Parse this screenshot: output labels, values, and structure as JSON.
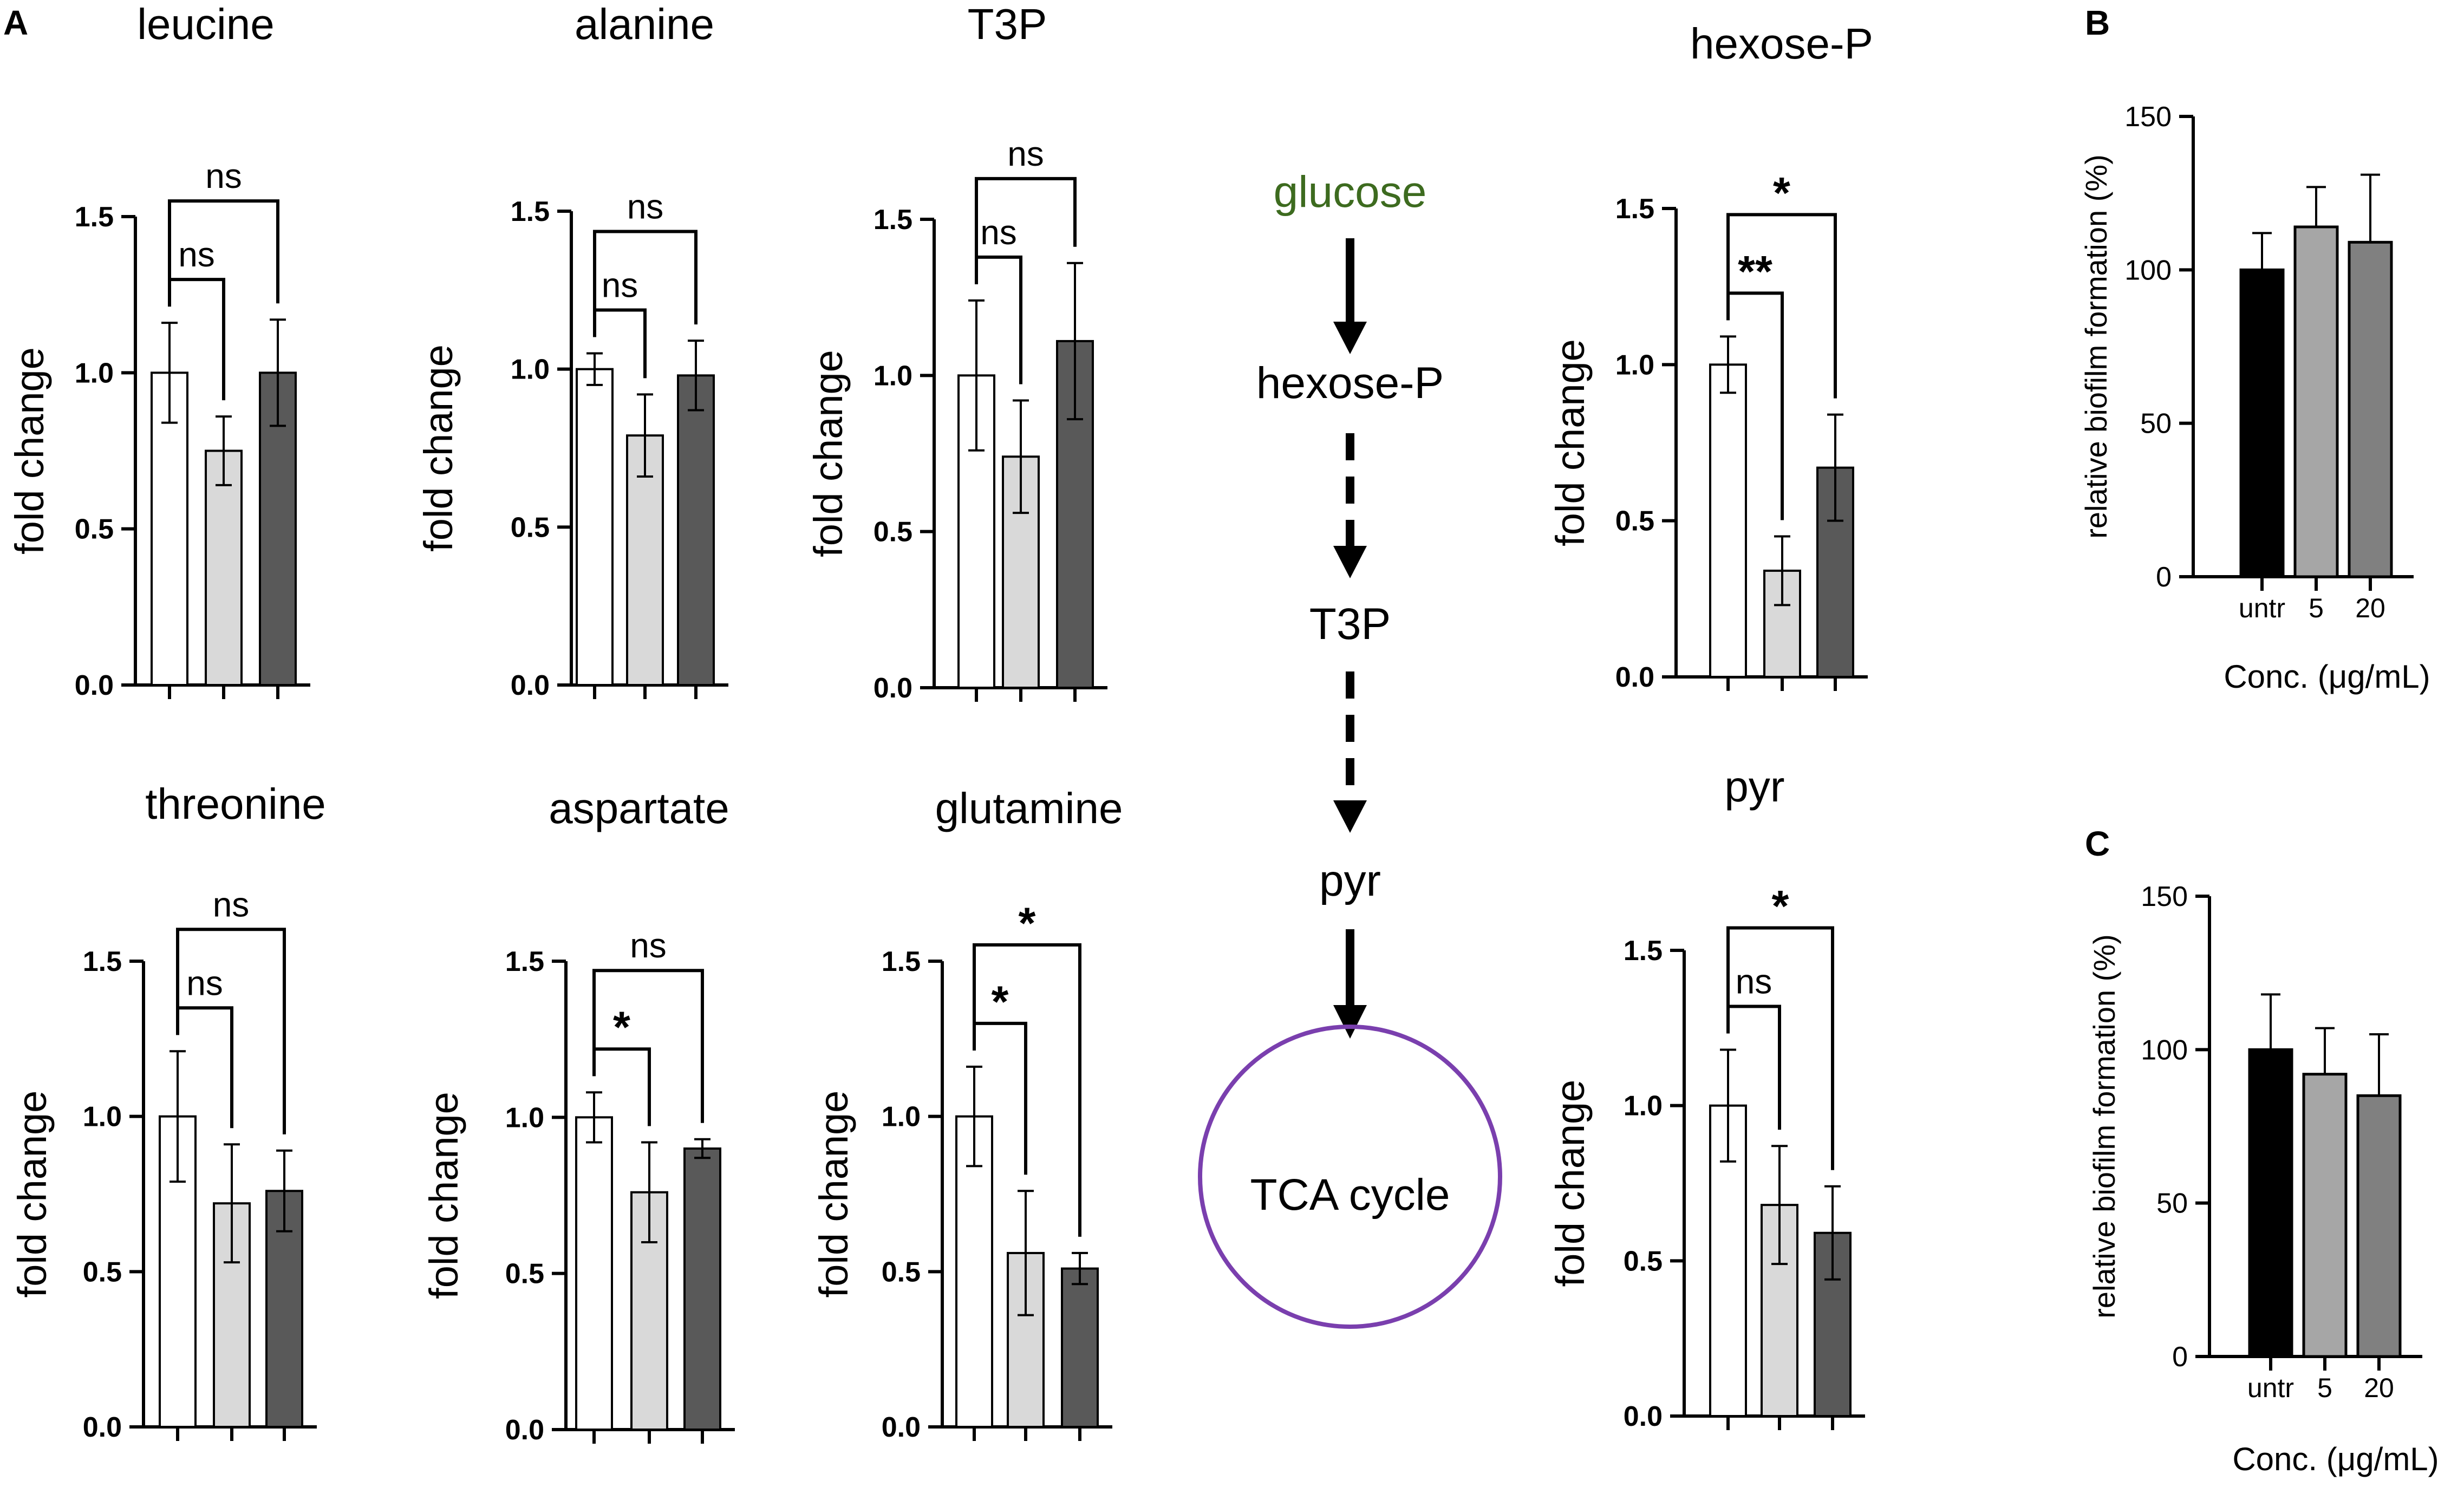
{
  "panel_labels": {
    "A": "A",
    "B": "B",
    "C": "C"
  },
  "colors": {
    "untreated": "#ffffff",
    "low": "#d9d9d9",
    "high": "#595959",
    "glucose": "#3d6b1f",
    "tca_circle": "#7a3fae"
  },
  "pathway": {
    "glucose": "glucose",
    "hexose": "hexose-P",
    "t3p": "T3P",
    "pyr": "pyr",
    "tca": "TCA cycle"
  },
  "chart_data": [
    {
      "type": "bar",
      "title": "leucine",
      "ylabel": "fold change",
      "ylim": [
        0,
        1.5
      ],
      "yticks": [
        "0.0",
        "0.5",
        "1.0",
        "1.5"
      ],
      "values": [
        1.0,
        0.75,
        1.0
      ],
      "errors": [
        0.16,
        0.11,
        0.17
      ],
      "comparisons": [
        {
          "from": 0,
          "to": 1,
          "label": "ns"
        },
        {
          "from": 0,
          "to": 2,
          "label": "ns"
        }
      ]
    },
    {
      "type": "bar",
      "title": "alanine",
      "ylabel": "fold change",
      "ylim": [
        0,
        1.5
      ],
      "yticks": [
        "0.0",
        "0.5",
        "1.0",
        "1.5"
      ],
      "values": [
        1.0,
        0.79,
        0.98
      ],
      "errors": [
        0.05,
        0.13,
        0.11
      ],
      "comparisons": [
        {
          "from": 0,
          "to": 1,
          "label": "ns"
        },
        {
          "from": 0,
          "to": 2,
          "label": "ns"
        }
      ]
    },
    {
      "type": "bar",
      "title": "T3P",
      "ylabel": "fold change",
      "ylim": [
        0,
        1.5
      ],
      "yticks": [
        "0.0",
        "0.5",
        "1.0",
        "1.5"
      ],
      "values": [
        1.0,
        0.74,
        1.11
      ],
      "errors": [
        0.24,
        0.18,
        0.25
      ],
      "comparisons": [
        {
          "from": 0,
          "to": 1,
          "label": "ns"
        },
        {
          "from": 0,
          "to": 2,
          "label": "ns"
        }
      ]
    },
    {
      "type": "bar",
      "title": "hexose-P",
      "ylabel": "fold change",
      "ylim": [
        0,
        1.5
      ],
      "yticks": [
        "0.0",
        "0.5",
        "1.0",
        "1.5"
      ],
      "values": [
        1.0,
        0.34,
        0.67
      ],
      "errors": [
        0.09,
        0.11,
        0.17
      ],
      "comparisons": [
        {
          "from": 0,
          "to": 1,
          "label": "**"
        },
        {
          "from": 0,
          "to": 2,
          "label": "*"
        }
      ]
    },
    {
      "type": "bar",
      "title": "threonine",
      "ylabel": "fold change",
      "ylim": [
        0,
        1.5
      ],
      "yticks": [
        "0.0",
        "0.5",
        "1.0",
        "1.5"
      ],
      "values": [
        1.0,
        0.72,
        0.76
      ],
      "errors": [
        0.21,
        0.19,
        0.13
      ],
      "comparisons": [
        {
          "from": 0,
          "to": 1,
          "label": "ns"
        },
        {
          "from": 0,
          "to": 2,
          "label": "ns"
        }
      ]
    },
    {
      "type": "bar",
      "title": "aspartate",
      "ylabel": "fold change",
      "ylim": [
        0,
        1.5
      ],
      "yticks": [
        "0.0",
        "0.5",
        "1.0",
        "1.5"
      ],
      "values": [
        1.0,
        0.76,
        0.9
      ],
      "errors": [
        0.08,
        0.16,
        0.03
      ],
      "comparisons": [
        {
          "from": 0,
          "to": 1,
          "label": "*"
        },
        {
          "from": 0,
          "to": 2,
          "label": "ns"
        }
      ]
    },
    {
      "type": "bar",
      "title": "glutamine",
      "ylabel": "fold change",
      "ylim": [
        0,
        1.5
      ],
      "yticks": [
        "0.0",
        "0.5",
        "1.0",
        "1.5"
      ],
      "values": [
        1.0,
        0.56,
        0.51
      ],
      "errors": [
        0.16,
        0.2,
        0.05
      ],
      "comparisons": [
        {
          "from": 0,
          "to": 1,
          "label": "*"
        },
        {
          "from": 0,
          "to": 2,
          "label": "*"
        }
      ]
    },
    {
      "type": "bar",
      "title": "pyr",
      "ylabel": "fold change",
      "ylim": [
        0,
        1.5
      ],
      "yticks": [
        "0.0",
        "0.5",
        "1.0",
        "1.5"
      ],
      "values": [
        1.0,
        0.68,
        0.59
      ],
      "errors": [
        0.18,
        0.19,
        0.15
      ],
      "comparisons": [
        {
          "from": 0,
          "to": 1,
          "label": "ns"
        },
        {
          "from": 0,
          "to": 2,
          "label": "*"
        }
      ]
    },
    {
      "type": "bar",
      "panel": "B",
      "ylabel": "relative biofilm formation (%)",
      "xlabel": "Conc. (μg/mL)",
      "categories": [
        "untr",
        "5",
        "20"
      ],
      "ylim": [
        0,
        150
      ],
      "yticks": [
        "0",
        "50",
        "100",
        "150"
      ],
      "values": [
        100,
        114,
        109
      ],
      "errors": [
        12,
        13,
        22
      ],
      "colors": [
        "#000000",
        "#a6a6a6",
        "#808080"
      ]
    },
    {
      "type": "bar",
      "panel": "C",
      "ylabel": "relative biofilm formation (%)",
      "xlabel": "Conc. (μg/mL)",
      "categories": [
        "untr",
        "5",
        "20"
      ],
      "ylim": [
        0,
        150
      ],
      "yticks": [
        "0",
        "50",
        "100",
        "150"
      ],
      "values": [
        100,
        92,
        85
      ],
      "errors": [
        18,
        15,
        20
      ],
      "colors": [
        "#000000",
        "#a6a6a6",
        "#808080"
      ]
    }
  ]
}
